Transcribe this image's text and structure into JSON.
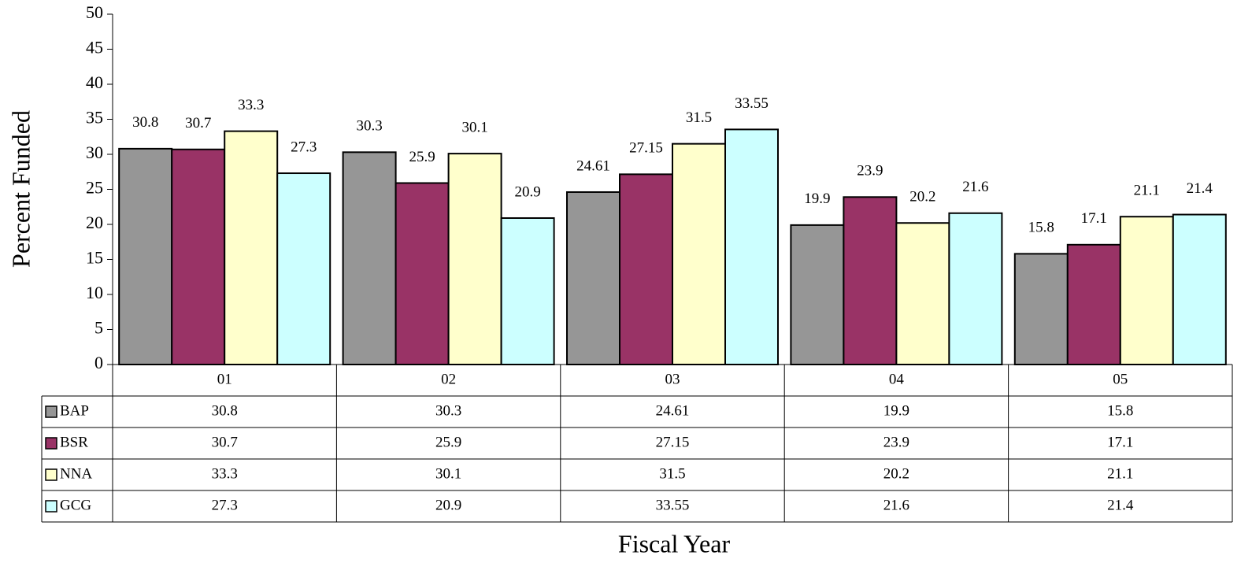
{
  "chart_data": {
    "type": "bar",
    "x_label": "Fiscal Year",
    "y_label": "Percent Funded",
    "categories": [
      "01",
      "02",
      "03",
      "04",
      "05"
    ],
    "series": [
      {
        "name": "BAP",
        "color": "#969696",
        "values": [
          30.8,
          30.3,
          24.61,
          19.9,
          15.8
        ]
      },
      {
        "name": "BSR",
        "color": "#993366",
        "values": [
          30.7,
          25.9,
          27.15,
          23.9,
          17.1
        ]
      },
      {
        "name": "NNA",
        "color": "#FFFFCC",
        "values": [
          33.3,
          30.1,
          31.5,
          20.2,
          21.1
        ]
      },
      {
        "name": "GCG",
        "color": "#CCFFFF",
        "values": [
          27.3,
          20.9,
          33.55,
          21.6,
          21.4
        ]
      }
    ],
    "ylim": [
      0,
      50
    ],
    "yticks": [
      0,
      5,
      10,
      15,
      20,
      25,
      30,
      35,
      40,
      45,
      50
    ],
    "grid": false,
    "data_table": true
  }
}
